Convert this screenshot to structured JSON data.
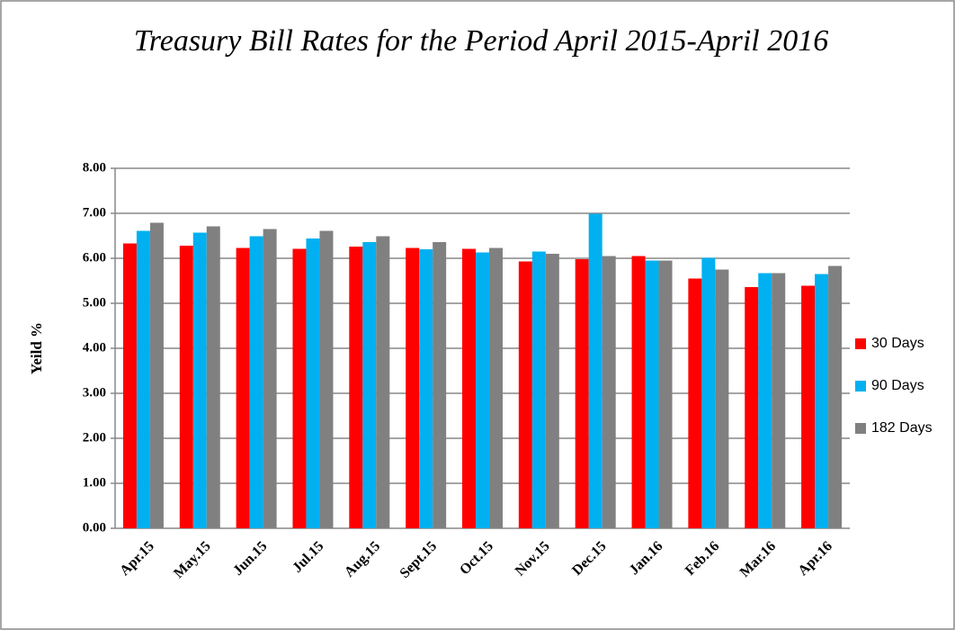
{
  "chart_data": {
    "type": "bar",
    "title": "Treasury Bill Rates for the Period April 2015-April 2016",
    "y_label": "Yeild %",
    "categories": [
      "Apr.15",
      "May.15",
      "Jun.15",
      "Jul.15",
      "Aug.15",
      "Sept.15",
      "Oct.15",
      "Nov.15",
      "Dec.15",
      "Jan.16",
      "Feb.16",
      "Mar.16",
      "Apr.16"
    ],
    "series": [
      {
        "name": "30 Days",
        "color": "#ff0000",
        "values": [
          6.33,
          6.28,
          6.23,
          6.21,
          6.26,
          6.23,
          6.21,
          5.93,
          5.98,
          6.05,
          5.55,
          5.36,
          5.39
        ]
      },
      {
        "name": "90 Days",
        "color": "#00b0f0",
        "values": [
          6.61,
          6.57,
          6.49,
          6.44,
          6.36,
          6.2,
          6.13,
          6.15,
          6.99,
          5.95,
          6.01,
          5.67,
          5.65
        ]
      },
      {
        "name": "182 Days",
        "color": "#808080",
        "values": [
          6.79,
          6.71,
          6.65,
          6.61,
          6.49,
          6.36,
          6.23,
          6.1,
          6.05,
          5.95,
          5.75,
          5.67,
          5.83
        ]
      }
    ],
    "ylim": [
      0,
      8
    ],
    "yticks": [
      {
        "value": 0,
        "label": "0.00"
      },
      {
        "value": 1,
        "label": "1.00"
      },
      {
        "value": 2,
        "label": "2.00"
      },
      {
        "value": 3,
        "label": "3.00"
      },
      {
        "value": 4,
        "label": "4.00"
      },
      {
        "value": 5,
        "label": "5.00"
      },
      {
        "value": 6,
        "label": "6.00"
      },
      {
        "value": 7,
        "label": "7.00"
      },
      {
        "value": 8,
        "label": "8.00"
      }
    ],
    "grid": true,
    "legend": "right"
  }
}
